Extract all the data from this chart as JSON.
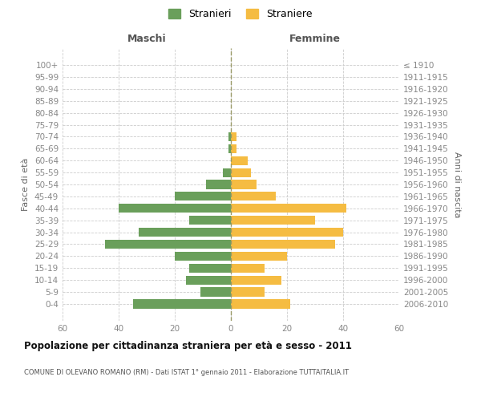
{
  "age_groups": [
    "100+",
    "95-99",
    "90-94",
    "85-89",
    "80-84",
    "75-79",
    "70-74",
    "65-69",
    "60-64",
    "55-59",
    "50-54",
    "45-49",
    "40-44",
    "35-39",
    "30-34",
    "25-29",
    "20-24",
    "15-19",
    "10-14",
    "5-9",
    "0-4"
  ],
  "birth_years": [
    "≤ 1910",
    "1911-1915",
    "1916-1920",
    "1921-1925",
    "1926-1930",
    "1931-1935",
    "1936-1940",
    "1941-1945",
    "1946-1950",
    "1951-1955",
    "1956-1960",
    "1961-1965",
    "1966-1970",
    "1971-1975",
    "1976-1980",
    "1981-1985",
    "1986-1990",
    "1991-1995",
    "1996-2000",
    "2001-2005",
    "2006-2010"
  ],
  "males": [
    0,
    0,
    0,
    0,
    0,
    0,
    1,
    1,
    0,
    3,
    9,
    20,
    40,
    15,
    33,
    45,
    20,
    15,
    16,
    11,
    35
  ],
  "females": [
    0,
    0,
    0,
    0,
    0,
    0,
    2,
    2,
    6,
    7,
    9,
    16,
    41,
    30,
    40,
    37,
    20,
    12,
    18,
    12,
    21
  ],
  "male_color": "#6a9f5b",
  "female_color": "#f5bc42",
  "background_color": "#ffffff",
  "grid_color": "#cccccc",
  "dashed_line_color": "#999966",
  "title": "Popolazione per cittadinanza straniera per età e sesso - 2011",
  "subtitle": "COMUNE DI OLEVANO ROMANO (RM) - Dati ISTAT 1° gennaio 2011 - Elaborazione TUTTAITALIA.IT",
  "xlabel_left": "Maschi",
  "xlabel_right": "Femmine",
  "ylabel_left": "Fasce di età",
  "ylabel_right": "Anni di nascita",
  "legend_male": "Stranieri",
  "legend_female": "Straniere",
  "xlim": 60,
  "bar_height": 0.75
}
